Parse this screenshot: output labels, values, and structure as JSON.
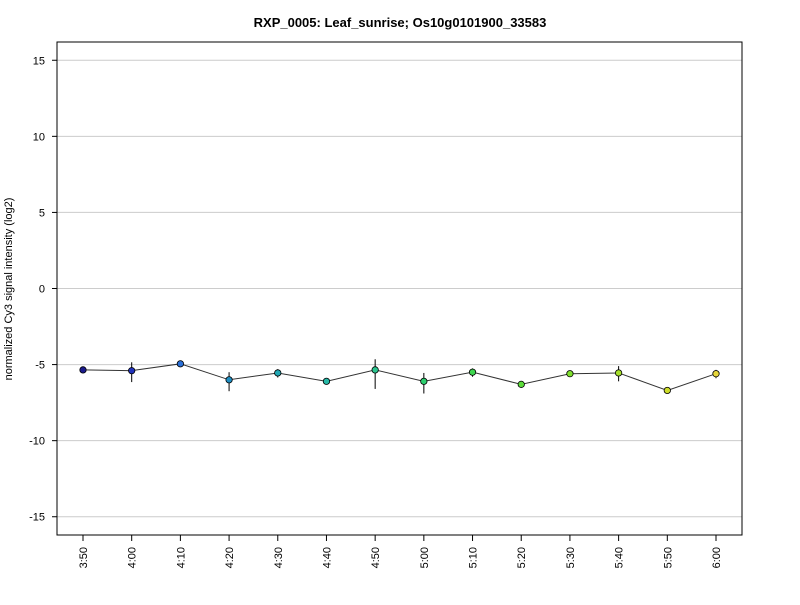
{
  "chart_data": {
    "type": "line",
    "title": "RXP_0005: Leaf_sunrise; Os10g0101900_33583",
    "xlabel": "",
    "ylabel": "normalized Cy3 signal intensity (log2)",
    "ylim": [
      -16.2,
      16.2
    ],
    "yticks": [
      -15,
      -10,
      -5,
      0,
      5,
      10,
      15
    ],
    "grid": true,
    "categories": [
      "3:50",
      "4:00",
      "4:10",
      "4:20",
      "4:30",
      "4:40",
      "4:50",
      "5:00",
      "5:10",
      "5:20",
      "5:30",
      "5:40",
      "5:50",
      "6:00"
    ],
    "series": [
      {
        "values": [
          -5.35,
          -5.4,
          -4.95,
          -6.0,
          -5.55,
          -6.1,
          -5.35,
          -6.1,
          -5.5,
          -6.3,
          -5.6,
          -5.55,
          -6.7,
          -5.6
        ],
        "err_low": [
          -5.55,
          -6.15,
          -5.05,
          -6.75,
          -5.85,
          -6.3,
          -6.6,
          -6.9,
          -5.8,
          -6.4,
          -5.75,
          -6.1,
          -6.8,
          -5.9
        ],
        "err_high": [
          -5.2,
          -4.85,
          -4.8,
          -5.5,
          -5.3,
          -5.9,
          -4.65,
          -5.55,
          -5.25,
          -6.15,
          -5.45,
          -5.1,
          -6.6,
          -5.35
        ],
        "colors": [
          "#1a1a8c",
          "#2233bb",
          "#2a6fd6",
          "#1f8ec2",
          "#22a8b5",
          "#26b8a6",
          "#2ac48e",
          "#2ccf6e",
          "#3dd64e",
          "#5cdc3a",
          "#80e02e",
          "#a6e02a",
          "#cddd2a",
          "#e6d63a"
        ]
      }
    ]
  }
}
